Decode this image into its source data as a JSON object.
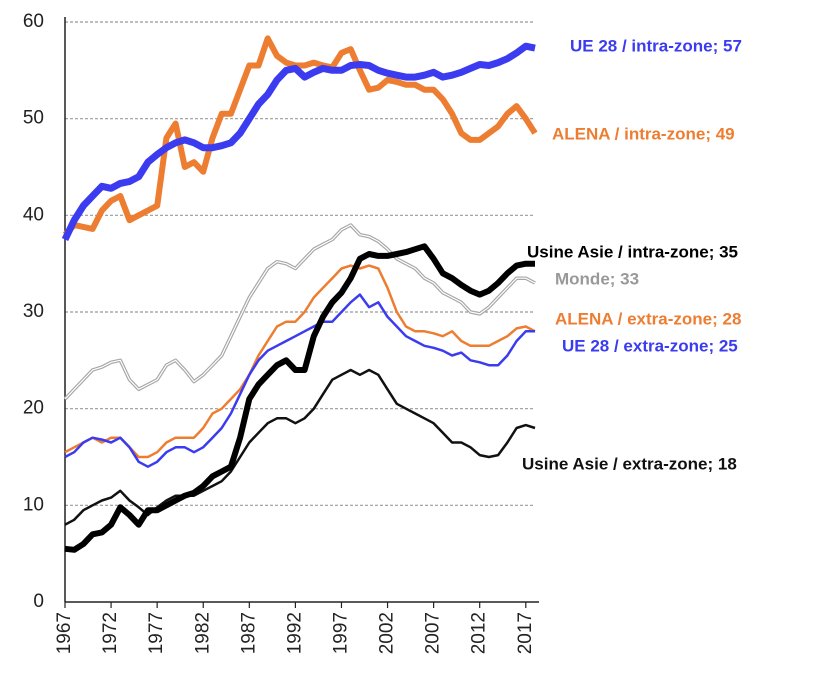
{
  "chart_data": {
    "type": "line",
    "x": [
      1967,
      1968,
      1969,
      1970,
      1971,
      1972,
      1973,
      1974,
      1975,
      1976,
      1977,
      1978,
      1979,
      1980,
      1981,
      1982,
      1983,
      1984,
      1985,
      1986,
      1987,
      1988,
      1989,
      1990,
      1991,
      1992,
      1993,
      1994,
      1995,
      1996,
      1997,
      1998,
      1999,
      2000,
      2001,
      2002,
      2003,
      2004,
      2005,
      2006,
      2007,
      2008,
      2009,
      2010,
      2011,
      2012,
      2013,
      2014,
      2015,
      2016,
      2017,
      2018
    ],
    "xlim": [
      1967,
      2018
    ],
    "xticks": [
      1967,
      1972,
      1977,
      1982,
      1987,
      1992,
      1997,
      2002,
      2007,
      2012,
      2017
    ],
    "ylim": [
      0,
      60
    ],
    "yticks": [
      0,
      10,
      20,
      30,
      40,
      50,
      60
    ],
    "grid": true,
    "series": [
      {
        "name": "Monde; 33",
        "color": "#a6a6a6",
        "values": [
          21,
          22,
          23,
          24,
          24.3,
          24.8,
          25,
          23,
          22,
          22.5,
          23,
          24.5,
          25,
          24,
          22.8,
          23.5,
          24.5,
          25.5,
          27.5,
          29.5,
          31.5,
          33,
          34.5,
          35.2,
          35,
          34.5,
          35.5,
          36.5,
          37,
          37.5,
          38.5,
          39,
          38,
          37.8,
          37.3,
          36.5,
          35.5,
          35,
          34.5,
          33.5,
          33,
          32,
          31.5,
          31,
          30,
          29.8,
          30.5,
          31.5,
          32.5,
          33.5,
          33.5,
          33
        ]
      },
      {
        "name": "Usine Asie / extra-zone; 18",
        "color": "#111111",
        "values": [
          8,
          8.5,
          9.5,
          10,
          10.5,
          10.8,
          11.5,
          10.5,
          9.8,
          9,
          9.8,
          10.5,
          11,
          11,
          11,
          11.5,
          12,
          12.5,
          13.5,
          15,
          16.5,
          17.5,
          18.5,
          19,
          19,
          18.5,
          19,
          20,
          21.5,
          23,
          23.5,
          24,
          23.5,
          24,
          23.5,
          22,
          20.5,
          20,
          19.5,
          19,
          18.5,
          17.5,
          16.5,
          16.5,
          16,
          15.2,
          15,
          15.2,
          16.5,
          18,
          18.3,
          18
        ]
      },
      {
        "name": "ALENA / extra-zone; 28",
        "color": "#ed7d31",
        "values": [
          15.5,
          16,
          16.5,
          17,
          16.5,
          17,
          17,
          16,
          15,
          15,
          15.5,
          16.5,
          17,
          17,
          17,
          18,
          19.5,
          20,
          21,
          22,
          23.5,
          25.5,
          27,
          28.5,
          29,
          29,
          30,
          31.5,
          32.5,
          33.5,
          34.5,
          34.8,
          34.5,
          34.8,
          34.5,
          32.5,
          30,
          28.5,
          28,
          28,
          27.8,
          27.5,
          28,
          27,
          26.5,
          26.5,
          26.5,
          27,
          27.5,
          28.3,
          28.5,
          28
        ]
      },
      {
        "name": "UE 28 / extra-zone; 25",
        "color": "#3b3bf0",
        "values": [
          15,
          15.5,
          16.5,
          17,
          16.8,
          16.5,
          17,
          16,
          14.5,
          14,
          14.5,
          15.5,
          16,
          16,
          15.5,
          16,
          17,
          18,
          19.5,
          21.5,
          23.5,
          25,
          26,
          26.5,
          27,
          27.5,
          28,
          28.5,
          29,
          29,
          30,
          31,
          31.8,
          30.5,
          31,
          29.5,
          28.5,
          27.5,
          27,
          26.5,
          26.3,
          26,
          25.5,
          25.8,
          25,
          24.8,
          24.5,
          24.5,
          25.5,
          27,
          28,
          28
        ]
      },
      {
        "name": "Usine Asie / intra-zone; 35",
        "color": "#000000",
        "values": [
          5.5,
          5.4,
          6,
          7,
          7.2,
          8,
          9.8,
          9,
          8,
          9.5,
          9.5,
          10,
          10.5,
          11,
          11.3,
          12,
          13,
          13.5,
          14,
          17,
          21,
          22.5,
          23.5,
          24.5,
          25,
          24,
          24,
          27.5,
          29.5,
          31,
          32,
          33.5,
          35.5,
          36,
          35.8,
          35.8,
          36,
          36.2,
          36.5,
          36.8,
          35.5,
          34,
          33.5,
          32.8,
          32.2,
          31.8,
          32.2,
          33,
          34,
          34.8,
          35,
          35
        ]
      },
      {
        "name": "ALENA / intra-zone; 49",
        "color": "#ed7d31",
        "values": [
          38,
          39,
          38.8,
          38.6,
          40.5,
          41.5,
          42,
          39.5,
          40,
          40.5,
          41,
          48,
          49.5,
          45,
          45.5,
          44.5,
          48,
          50.5,
          50.5,
          53,
          55.5,
          55.5,
          58.3,
          56.5,
          55.8,
          55.5,
          55.5,
          55.8,
          55.5,
          55.3,
          56.8,
          57.2,
          55,
          53,
          53.2,
          54,
          53.8,
          53.5,
          53.5,
          53,
          53,
          52,
          50.5,
          48.5,
          47.8,
          47.8,
          48.5,
          49.2,
          50.5,
          51.3,
          50,
          48.5
        ]
      },
      {
        "name": "UE 28 / intra-zone; 57",
        "color": "#3b3bf0",
        "values": [
          37.5,
          39.5,
          41,
          42,
          43,
          42.8,
          43.3,
          43.5,
          44,
          45.5,
          46.3,
          47,
          47.5,
          47.8,
          47.5,
          47,
          47,
          47.2,
          47.5,
          48.5,
          50,
          51.5,
          52.5,
          54,
          55,
          55.2,
          54.3,
          54.8,
          55.2,
          55,
          55,
          55.5,
          55.6,
          55.5,
          55,
          54.7,
          54.5,
          54.3,
          54.3,
          54.5,
          54.8,
          54.3,
          54.5,
          54.8,
          55.2,
          55.6,
          55.5,
          55.8,
          56.2,
          56.8,
          57.5,
          57.3
        ]
      }
    ]
  }
}
